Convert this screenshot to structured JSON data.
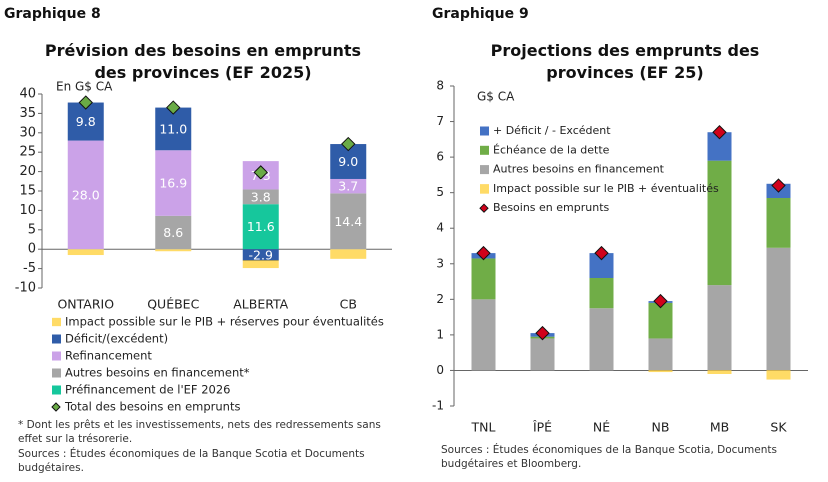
{
  "chart_data": [
    {
      "type": "bar",
      "stacked": true,
      "label": "Graphique 8",
      "title": "Prévision des besoins en emprunts des provinces (EF 2025)",
      "y_axis_label": "En G$ CA",
      "categories": [
        "ONTARIO",
        "QUÉBEC",
        "ALBERTA",
        "CB"
      ],
      "ylim": [
        -10,
        40
      ],
      "yticks": [
        -10,
        -5,
        0,
        5,
        10,
        15,
        20,
        25,
        30,
        35,
        40
      ],
      "series": [
        {
          "name": "Impact possible sur le PIB + réserves pour éventualités",
          "color": "#ffc000",
          "pattern": "hatch",
          "values": [
            -1.5,
            -0.5,
            -2.0,
            -2.5
          ]
        },
        {
          "name": "Déficit/(excédent)",
          "color": "#2f5ca8",
          "values": [
            9.8,
            11.0,
            -2.9,
            9.0
          ],
          "value_labels": [
            "9.8",
            "11.0",
            "-2.9",
            "9.0"
          ]
        },
        {
          "name": "Refinancement",
          "color": "#cba2e8",
          "values": [
            28.0,
            16.9,
            7.3,
            3.7
          ],
          "value_labels": [
            "28.0",
            "16.9",
            "7.3",
            "3.7"
          ]
        },
        {
          "name": "Autres besoins en financement*",
          "color": "#a6a6a6",
          "values": [
            0,
            8.6,
            3.8,
            14.4
          ],
          "value_labels": [
            null,
            "8.6",
            "3.8",
            "14.4"
          ]
        },
        {
          "name": "Préfinancement de l'EF 2026",
          "color": "#16c79c",
          "values": [
            0,
            0,
            11.6,
            0
          ],
          "value_labels": [
            null,
            null,
            "11.6",
            null
          ]
        },
        {
          "name": "Total des besoins en emprunts",
          "type": "marker",
          "marker": "diamond",
          "color": "#6aab46",
          "values": [
            37.8,
            36.5,
            19.8,
            27.1
          ]
        }
      ],
      "footnotes": [
        "* Dont les prêts et les investissements, nets des redressements sans effet sur la trésorerie.",
        "Sources : Études économiques de la Banque Scotia et Documents budgétaires."
      ]
    },
    {
      "type": "bar",
      "stacked": true,
      "label": "Graphique 9",
      "title": "Projections des emprunts des provinces (EF 25)",
      "y_axis_label": "G$ CA",
      "categories": [
        "TNL",
        "ÎPÉ",
        "NÉ",
        "NB",
        "MB",
        "SK"
      ],
      "ylim": [
        -1,
        8
      ],
      "yticks": [
        -1,
        0,
        1,
        2,
        3,
        4,
        5,
        6,
        7,
        8
      ],
      "series": [
        {
          "name": "+ Déficit / - Excédent",
          "color": "#4472c4",
          "values": [
            0.15,
            0.1,
            0.7,
            0.05,
            0.8,
            0.4
          ]
        },
        {
          "name": "Échéance de la dette",
          "color": "#70ad47",
          "values": [
            1.15,
            0.05,
            0.85,
            1.0,
            3.5,
            1.4
          ]
        },
        {
          "name": "Autres besoins en financement",
          "color": "#a6a6a6",
          "values": [
            2.0,
            0.9,
            1.75,
            0.9,
            2.4,
            3.45
          ]
        },
        {
          "name": "Impact possible sur le PIB + éventualités",
          "color": "#ffc000",
          "pattern": "hatch",
          "values": [
            0,
            0,
            0,
            -0.05,
            -0.1,
            -0.25
          ]
        },
        {
          "name": "Besoins en emprunts",
          "type": "marker",
          "marker": "diamond",
          "color": "#d0021b",
          "values": [
            3.3,
            1.05,
            3.3,
            1.95,
            6.7,
            5.2
          ]
        }
      ],
      "footnotes": [
        "Sources : Études économiques de la Banque Scotia, Documents budgétaires et Bloomberg."
      ]
    }
  ]
}
